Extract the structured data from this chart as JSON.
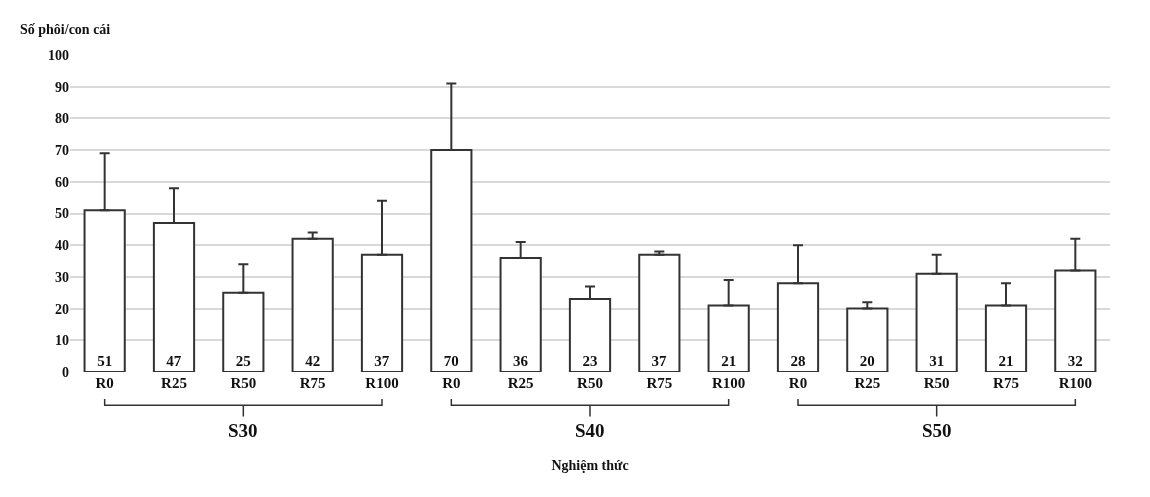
{
  "chart_data": {
    "type": "bar",
    "ylabel": "Số phôi/con cái",
    "xlabel": "Nghiệm thức",
    "categories": [
      "R0",
      "R25",
      "R50",
      "R75",
      "R100",
      "R0",
      "R25",
      "R50",
      "R75",
      "R100",
      "R0",
      "R25",
      "R50",
      "R75",
      "R100"
    ],
    "values": [
      51,
      47,
      25,
      42,
      37,
      70,
      36,
      23,
      37,
      21,
      28,
      20,
      31,
      21,
      32
    ],
    "errors": [
      [
        51,
        69
      ],
      [
        47,
        58
      ],
      [
        25,
        34
      ],
      [
        42,
        44
      ],
      [
        37,
        54
      ],
      [
        70,
        91
      ],
      [
        36,
        41
      ],
      [
        23,
        27
      ],
      [
        37,
        38
      ],
      [
        21,
        29
      ],
      [
        28,
        40
      ],
      [
        20,
        22
      ],
      [
        31,
        37
      ],
      [
        21,
        28
      ],
      [
        32,
        42
      ]
    ],
    "color": "#ffffff",
    "data_labels": true,
    "ylim": [
      0,
      100
    ],
    "yticks": [
      0,
      10,
      20,
      30,
      40,
      50,
      60,
      70,
      80,
      90,
      100
    ],
    "grid": "y",
    "annotations": [
      "S30",
      "S40",
      "S50"
    ]
  }
}
